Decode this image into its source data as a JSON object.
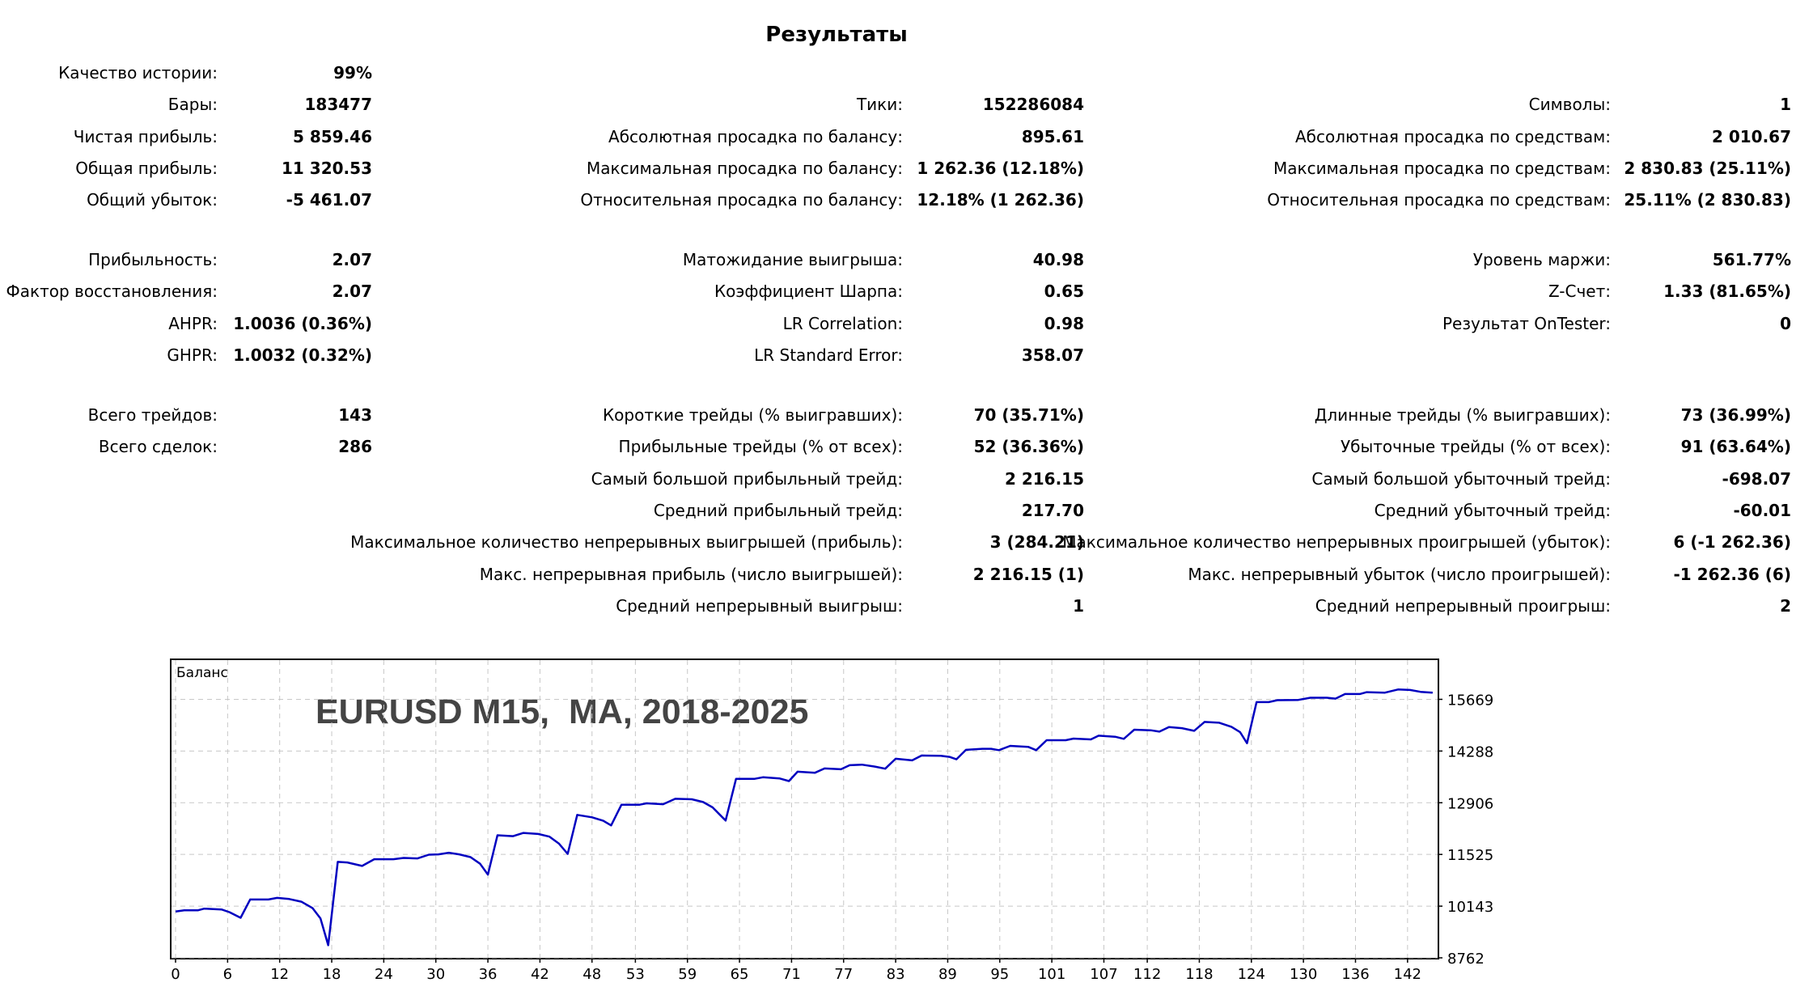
{
  "title": "Результаты",
  "groups": [
    {
      "rows": [
        {
          "c1": {
            "label": "Качество истории:",
            "value": "99%"
          },
          "c2": null,
          "c3": null
        },
        {
          "c1": {
            "label": "Бары:",
            "value": "183477"
          },
          "c2": {
            "label": "Тики:",
            "value": "152286084"
          },
          "c3": {
            "label": "Символы:",
            "value": "1"
          }
        },
        {
          "c1": {
            "label": "Чистая прибыль:",
            "value": "5 859.46"
          },
          "c2": {
            "label": "Абсолютная просадка по балансу:",
            "value": "895.61"
          },
          "c3": {
            "label": "Абсолютная просадка по средствам:",
            "value": "2 010.67"
          }
        },
        {
          "c1": {
            "label": "Общая прибыль:",
            "value": "11 320.53"
          },
          "c2": {
            "label": "Максимальная просадка по балансу:",
            "value": "1 262.36 (12.18%)"
          },
          "c3": {
            "label": "Максимальная просадка по средствам:",
            "value": "2 830.83 (25.11%)"
          }
        },
        {
          "c1": {
            "label": "Общий убыток:",
            "value": "-5 461.07"
          },
          "c2": {
            "label": "Относительная просадка по балансу:",
            "value": "12.18% (1 262.36)"
          },
          "c3": {
            "label": "Относительная просадка по средствам:",
            "value": "25.11% (2 830.83)"
          }
        }
      ]
    },
    {
      "rows": [
        {
          "c1": {
            "label": "Прибыльность:",
            "value": "2.07"
          },
          "c2": {
            "label": "Матожидание выигрыша:",
            "value": "40.98"
          },
          "c3": {
            "label": "Уровень маржи:",
            "value": "561.77%"
          }
        },
        {
          "c1": {
            "label": "Фактор восстановления:",
            "value": "2.07"
          },
          "c2": {
            "label": "Коэффициент Шарпа:",
            "value": "0.65"
          },
          "c3": {
            "label": "Z-Счет:",
            "value": "1.33 (81.65%)"
          }
        },
        {
          "c1": {
            "label": "AHPR:",
            "value": "1.0036 (0.36%)"
          },
          "c2": {
            "label": "LR Correlation:",
            "value": "0.98"
          },
          "c3": {
            "label": "Результат OnTester:",
            "value": "0"
          }
        },
        {
          "c1": {
            "label": "GHPR:",
            "value": "1.0032 (0.32%)"
          },
          "c2": {
            "label": "LR Standard Error:",
            "value": "358.07"
          },
          "c3": null
        }
      ]
    },
    {
      "rows": [
        {
          "c1": {
            "label": "Всего трейдов:",
            "value": "143"
          },
          "c2": {
            "label": "Короткие трейды (% выигравших):",
            "value": "70 (35.71%)"
          },
          "c3": {
            "label": "Длинные трейды (% выигравших):",
            "value": "73 (36.99%)"
          }
        },
        {
          "c1": {
            "label": "Всего сделок:",
            "value": "286"
          },
          "c2": {
            "label": "Прибыльные трейды (% от всех):",
            "value": "52 (36.36%)"
          },
          "c3": {
            "label": "Убыточные трейды (% от всех):",
            "value": "91 (63.64%)"
          }
        },
        {
          "c1": null,
          "c2": {
            "label": "Самый большой прибыльный трейд:",
            "value": "2 216.15"
          },
          "c3": {
            "label": "Самый большой убыточный трейд:",
            "value": "-698.07"
          }
        },
        {
          "c1": null,
          "c2": {
            "label": "Средний прибыльный трейд:",
            "value": "217.70"
          },
          "c3": {
            "label": "Средний убыточный трейд:",
            "value": "-60.01"
          }
        },
        {
          "c1": null,
          "c2": {
            "label": "Максимальное количество непрерывных выигрышей (прибыль):",
            "value": "3 (284.21)"
          },
          "c3": {
            "label": "Максимальное количество непрерывных проигрышей (убыток):",
            "value": "6 (-1 262.36)"
          }
        },
        {
          "c1": null,
          "c2": {
            "label": "Макс. непрерывная прибыль (число выигрышей):",
            "value": "2 216.15 (1)"
          },
          "c3": {
            "label": "Макс. непрерывный убыток (число проигрышей):",
            "value": "-1 262.36 (6)"
          }
        },
        {
          "c1": null,
          "c2": {
            "label": "Средний непрерывный выигрыш:",
            "value": "1"
          },
          "c3": {
            "label": "Средний непрерывный проигрыш:",
            "value": "2"
          }
        }
      ]
    }
  ],
  "chart_data": {
    "type": "line",
    "legend_label": "Баланс",
    "overlay_title": "EURUSD M15,  MA, 2018-2025",
    "line_color": "#0000c0",
    "x_ticks": [
      0,
      6,
      12,
      18,
      24,
      30,
      36,
      42,
      48,
      53,
      59,
      65,
      71,
      77,
      83,
      89,
      95,
      101,
      107,
      112,
      118,
      124,
      130,
      136,
      142
    ],
    "y_ticks": [
      8762,
      10143,
      11525,
      12906,
      14288,
      15669
    ],
    "xlim": [
      0,
      145
    ],
    "ylim": [
      8762,
      16717
    ],
    "grid": true,
    "series": [
      {
        "name": "Баланс",
        "points": [
          [
            0,
            10000
          ],
          [
            1,
            10033
          ],
          [
            2.6,
            10033
          ],
          [
            3.3,
            10076
          ],
          [
            5.3,
            10054
          ],
          [
            6.2,
            9983
          ],
          [
            7.5,
            9832
          ],
          [
            8.6,
            10320
          ],
          [
            10.7,
            10320
          ],
          [
            11.7,
            10363
          ],
          [
            13.1,
            10334
          ],
          [
            14.5,
            10262
          ],
          [
            15.8,
            10090
          ],
          [
            16.7,
            9817
          ],
          [
            17.6,
            9100
          ],
          [
            18.7,
            11325
          ],
          [
            19.8,
            11310
          ],
          [
            21.5,
            11217
          ],
          [
            22.9,
            11397
          ],
          [
            25.1,
            11397
          ],
          [
            26.3,
            11432
          ],
          [
            27.9,
            11418
          ],
          [
            29.2,
            11518
          ],
          [
            30.3,
            11526
          ],
          [
            31.5,
            11569
          ],
          [
            32.7,
            11526
          ],
          [
            34,
            11454
          ],
          [
            35.1,
            11275
          ],
          [
            36,
            10987
          ],
          [
            37.1,
            12036
          ],
          [
            38.9,
            12014
          ],
          [
            40.1,
            12100
          ],
          [
            41.8,
            12071
          ],
          [
            43.1,
            12000
          ],
          [
            44.2,
            11813
          ],
          [
            45.2,
            11540
          ],
          [
            46.3,
            12581
          ],
          [
            48,
            12517
          ],
          [
            49.3,
            12423
          ],
          [
            50.2,
            12301
          ],
          [
            51.4,
            12854
          ],
          [
            53.5,
            12854
          ],
          [
            54.3,
            12890
          ],
          [
            56.2,
            12868
          ],
          [
            57.6,
            13012
          ],
          [
            59.5,
            12998
          ],
          [
            60.8,
            12926
          ],
          [
            61.9,
            12782
          ],
          [
            63.4,
            12430
          ],
          [
            64.6,
            13543
          ],
          [
            66.7,
            13543
          ],
          [
            67.7,
            13586
          ],
          [
            69.6,
            13557
          ],
          [
            70.7,
            13486
          ],
          [
            71.7,
            13737
          ],
          [
            73.7,
            13708
          ],
          [
            74.8,
            13823
          ],
          [
            76.7,
            13801
          ],
          [
            77.7,
            13909
          ],
          [
            79.1,
            13924
          ],
          [
            80.6,
            13873
          ],
          [
            81.8,
            13816
          ],
          [
            83,
            14081
          ],
          [
            84.9,
            14039
          ],
          [
            86,
            14168
          ],
          [
            88.2,
            14161
          ],
          [
            89.2,
            14132
          ],
          [
            90,
            14067
          ],
          [
            91.1,
            14319
          ],
          [
            93,
            14347
          ],
          [
            94,
            14347
          ],
          [
            94.9,
            14311
          ],
          [
            96.2,
            14426
          ],
          [
            98.3,
            14397
          ],
          [
            99.2,
            14311
          ],
          [
            100.4,
            14577
          ],
          [
            102.6,
            14577
          ],
          [
            103.5,
            14620
          ],
          [
            105.5,
            14598
          ],
          [
            106.4,
            14699
          ],
          [
            108.3,
            14670
          ],
          [
            109.3,
            14613
          ],
          [
            110.5,
            14857
          ],
          [
            112.4,
            14842
          ],
          [
            113.4,
            14807
          ],
          [
            114.5,
            14929
          ],
          [
            116,
            14900
          ],
          [
            117.4,
            14828
          ],
          [
            118.6,
            15065
          ],
          [
            120.3,
            15044
          ],
          [
            121.7,
            14936
          ],
          [
            122.7,
            14792
          ],
          [
            123.5,
            14498
          ],
          [
            124.6,
            15596
          ],
          [
            126,
            15596
          ],
          [
            127,
            15646
          ],
          [
            129.4,
            15653
          ],
          [
            130.8,
            15711
          ],
          [
            132.7,
            15711
          ],
          [
            133.7,
            15689
          ],
          [
            134.8,
            15811
          ],
          [
            136.5,
            15811
          ],
          [
            137.3,
            15862
          ],
          [
            139.4,
            15847
          ],
          [
            140.9,
            15933
          ],
          [
            142.3,
            15919
          ],
          [
            143.5,
            15869
          ],
          [
            144.9,
            15847
          ]
        ]
      }
    ]
  }
}
